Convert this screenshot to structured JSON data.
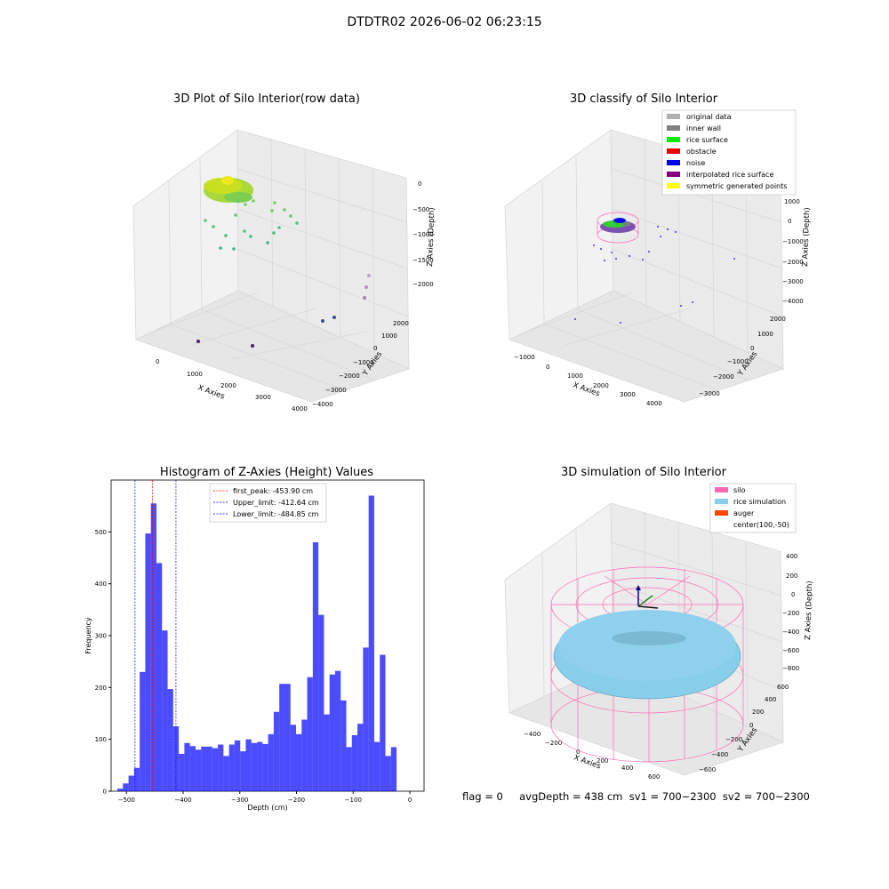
{
  "suptitle": "DTDTR02 2026-06-02 06:23:15",
  "footer": "flag = 0     avgDepth = 438 cm  sv1 = 700~2300  sv2 = 700~2300",
  "chart_data": [
    {
      "type": "scatter",
      "title": "3D Plot of Silo Interior(row data)",
      "xlabel": "X Axies",
      "ylabel": "Y Axies",
      "zlabel": "Z Axies (Depth)",
      "x_ticks": [
        "0",
        "1000",
        "2000",
        "3000",
        "4000"
      ],
      "y_ticks": [
        "−4000",
        "−3000",
        "−2000",
        "−1000",
        "0",
        "1000",
        "2000"
      ],
      "z_ticks": [
        "0",
        "−500",
        "−1000",
        "−1500",
        "−2000"
      ],
      "colormap": "viridis"
    },
    {
      "type": "scatter",
      "title": "3D classify of Silo Interior",
      "xlabel": "X Axies",
      "ylabel": "Y Axies",
      "zlabel": "Z Axies (Depth)",
      "x_ticks": [
        "−1000",
        "0",
        "1000",
        "2000",
        "3000",
        "4000"
      ],
      "y_ticks": [
        "−3000",
        "−2000",
        "−1000",
        "0",
        "1000",
        "2000"
      ],
      "z_ticks": [
        "1000",
        "0",
        "−1000",
        "−2000",
        "−3000",
        "−4000"
      ],
      "legend": [
        {
          "label": "original data",
          "color": "#b0b0b0"
        },
        {
          "label": "inner wall",
          "color": "#808080"
        },
        {
          "label": "rice surface",
          "color": "#00ee00"
        },
        {
          "label": "obstacle",
          "color": "#ee0000"
        },
        {
          "label": "noise",
          "color": "#0000ee"
        },
        {
          "label": "interpolated rice surface",
          "color": "#800080"
        },
        {
          "label": "symmetric generated points",
          "color": "#ffff00"
        }
      ],
      "legend_position": "top-right"
    },
    {
      "type": "bar",
      "title": "Histogram of Z-Axies (Height) Values",
      "xlabel": "Depth (cm)",
      "ylabel": "Frequency",
      "xlim": [
        -527,
        25
      ],
      "ylim": [
        0,
        600
      ],
      "x_ticks": [
        -500,
        -400,
        -300,
        -200,
        -100,
        0
      ],
      "y_ticks": [
        0,
        100,
        200,
        300,
        400,
        500
      ],
      "bin_start": -516,
      "bin_width": 9.85,
      "values": [
        5,
        15,
        30,
        45,
        230,
        497,
        555,
        440,
        310,
        197,
        125,
        72,
        93,
        87,
        80,
        86,
        86,
        83,
        90,
        68,
        90,
        98,
        77,
        100,
        93,
        95,
        91,
        110,
        153,
        207,
        207,
        128,
        110,
        138,
        220,
        480,
        340,
        148,
        225,
        232,
        175,
        85,
        108,
        130,
        277,
        570,
        95,
        263,
        68,
        85
      ],
      "bar_color": "#0000ff",
      "lines": [
        {
          "label": "first_peak: -453.90 cm",
          "x": -453.9,
          "color": "#ff0000"
        },
        {
          "label": "Upper_limit: -412.64 cm",
          "x": -412.64,
          "color": "#0000ff"
        },
        {
          "label": "Lower_limit: -484.85 cm",
          "x": -484.85,
          "color": "#0000ff"
        }
      ],
      "legend_position": "top-center"
    },
    {
      "type": "scatter",
      "title": "3D simulation of Silo Interior",
      "xlabel": "X Axies",
      "ylabel": "Y Axies",
      "zlabel": "Z Axies (Depth)",
      "x_ticks": [
        "−400",
        "−200",
        "0",
        "200",
        "400",
        "600"
      ],
      "y_ticks": [
        "−600",
        "−400",
        "−200",
        "0",
        "200",
        "400",
        "600"
      ],
      "z_ticks": [
        "400",
        "200",
        "0",
        "−200",
        "−400",
        "−600",
        "−800"
      ],
      "legend": [
        {
          "label": "silo",
          "color": "#ff69b4"
        },
        {
          "label": "rice simulation",
          "color": "#87ceeb"
        },
        {
          "label": "auger",
          "color": "#ff4500"
        },
        {
          "label": "center(100,-50)",
          "color": ""
        }
      ],
      "legend_position": "top-right"
    }
  ]
}
